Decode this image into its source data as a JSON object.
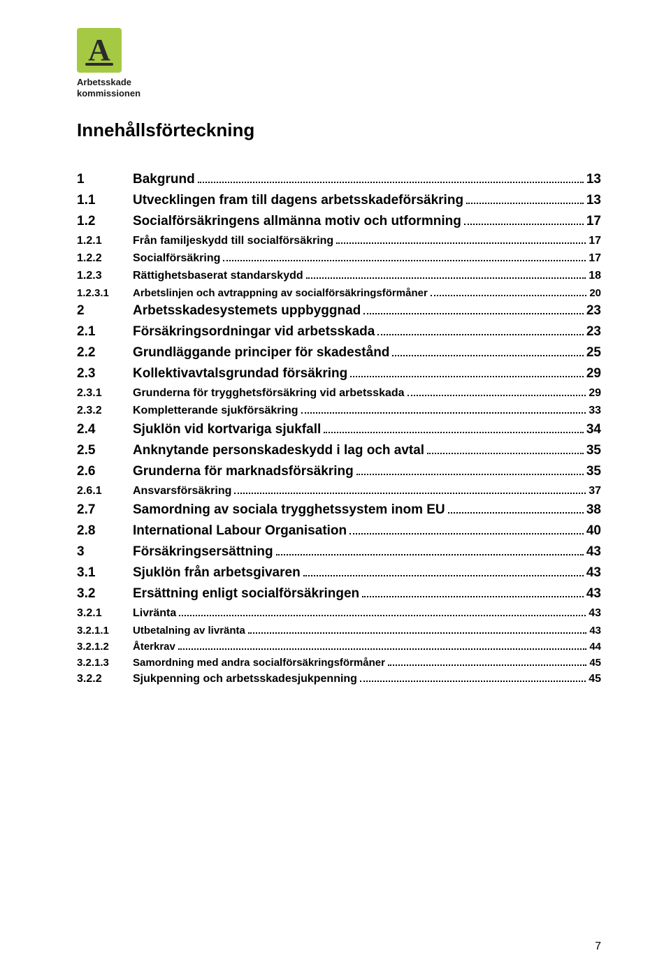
{
  "logo": {
    "glyph": "A",
    "line1": "Arbetsskade",
    "line2": "kommissionen",
    "box_bg": "#a6c943",
    "glyph_color": "#2b2b2b"
  },
  "title": "Innehållsförteckning",
  "page_number": "7",
  "toc": [
    {
      "level": 1,
      "num": "1",
      "label": "Bakgrund",
      "page": "13"
    },
    {
      "level": 2,
      "num": "1.1",
      "label": "Utvecklingen fram till dagens arbetsskadeförsäkring",
      "page": "13"
    },
    {
      "level": 2,
      "num": "1.2",
      "label": "Socialförsäkringens allmänna motiv och utformning",
      "page": "17"
    },
    {
      "level": 3,
      "num": "1.2.1",
      "label": "Från familjeskydd till socialförsäkring",
      "page": "17"
    },
    {
      "level": 3,
      "num": "1.2.2",
      "label": "Socialförsäkring",
      "page": "17"
    },
    {
      "level": 3,
      "num": "1.2.3",
      "label": "Rättighetsbaserat standarskydd",
      "page": "18"
    },
    {
      "level": 4,
      "num": "1.2.3.1",
      "label": "Arbetslinjen och avtrappning av socialförsäkringsförmåner",
      "page": "20"
    },
    {
      "level": 1,
      "num": "2",
      "label": "Arbetsskadesystemets uppbyggnad",
      "page": "23"
    },
    {
      "level": 2,
      "num": "2.1",
      "label": "Försäkringsordningar vid arbetsskada",
      "page": "23"
    },
    {
      "level": 2,
      "num": "2.2",
      "label": "Grundläggande principer för skadestånd",
      "page": "25"
    },
    {
      "level": 2,
      "num": "2.3",
      "label": "Kollektivavtalsgrundad försäkring",
      "page": "29"
    },
    {
      "level": 3,
      "num": "2.3.1",
      "label": "Grunderna för trygghetsförsäkring vid arbetsskada",
      "page": "29"
    },
    {
      "level": 3,
      "num": "2.3.2",
      "label": "Kompletterande sjukförsäkring",
      "page": "33"
    },
    {
      "level": 2,
      "num": "2.4",
      "label": "Sjuklön vid kortvariga sjukfall",
      "page": "34"
    },
    {
      "level": 2,
      "num": "2.5",
      "label": "Anknytande personskadeskydd i lag och avtal",
      "page": "35"
    },
    {
      "level": 2,
      "num": "2.6",
      "label": "Grunderna för marknadsförsäkring",
      "page": "35"
    },
    {
      "level": 3,
      "num": "2.6.1",
      "label": "Ansvarsförsäkring",
      "page": "37"
    },
    {
      "level": 2,
      "num": "2.7",
      "label": "Samordning av sociala trygghetssystem inom EU",
      "page": "38"
    },
    {
      "level": 2,
      "num": "2.8",
      "label": "International Labour Organisation",
      "page": "40"
    },
    {
      "level": 1,
      "num": "3",
      "label": "Försäkringsersättning",
      "page": "43"
    },
    {
      "level": 2,
      "num": "3.1",
      "label": "Sjuklön från arbetsgivaren",
      "page": "43"
    },
    {
      "level": 2,
      "num": "3.2",
      "label": "Ersättning enligt socialförsäkringen",
      "page": "43"
    },
    {
      "level": 3,
      "num": "3.2.1",
      "label": "Livränta",
      "page": "43"
    },
    {
      "level": 4,
      "num": "3.2.1.1",
      "label": "Utbetalning av livränta",
      "page": "43"
    },
    {
      "level": 4,
      "num": "3.2.1.2",
      "label": "Återkrav",
      "page": "44"
    },
    {
      "level": 4,
      "num": "3.2.1.3",
      "label": "Samordning med andra socialförsäkringsförmåner",
      "page": "45"
    },
    {
      "level": 3,
      "num": "3.2.2",
      "label": "Sjukpenning och arbetsskadesjukpenning",
      "page": "45"
    }
  ]
}
